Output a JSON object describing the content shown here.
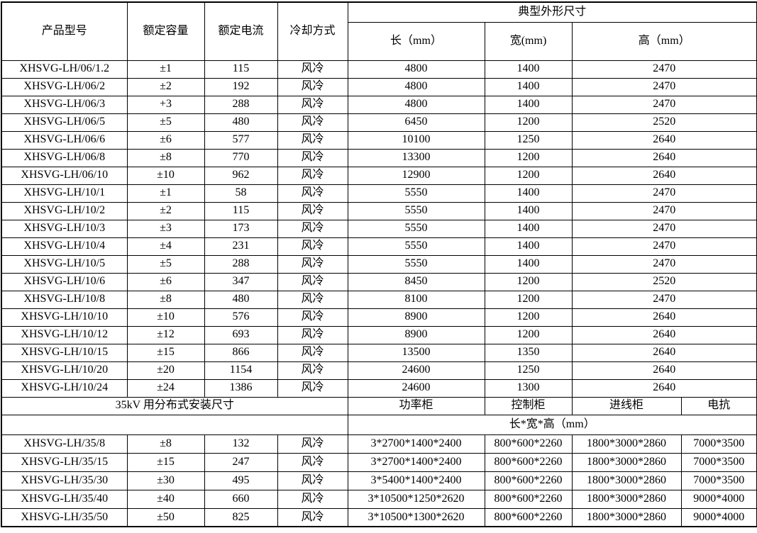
{
  "table": {
    "header": {
      "product": "产品型号",
      "capacity": "额定容量",
      "current": "额定电流",
      "cooling": "冷却方式",
      "dimensions_group": "典型外形尺寸",
      "length": "长（mm）",
      "width": "宽(mm)",
      "height": "高（mm）"
    },
    "rows_main": [
      [
        "XHSVG-LH/06/1.2",
        "±1",
        "115",
        "风冷",
        "4800",
        "1400",
        "2470"
      ],
      [
        "XHSVG-LH/06/2",
        "±2",
        "192",
        "风冷",
        "4800",
        "1400",
        "2470"
      ],
      [
        "XHSVG-LH/06/3",
        "+3",
        "288",
        "风冷",
        "4800",
        "1400",
        "2470"
      ],
      [
        "XHSVG-LH/06/5",
        "±5",
        "480",
        "风冷",
        "6450",
        "1200",
        "2520"
      ],
      [
        "XHSVG-LH/06/6",
        "±6",
        "577",
        "风冷",
        "10100",
        "1250",
        "2640"
      ],
      [
        "XHSVG-LH/06/8",
        "±8",
        "770",
        "风冷",
        "13300",
        "1200",
        "2640"
      ],
      [
        "XHSVG-LH/06/10",
        "±10",
        "962",
        "风冷",
        "12900",
        "1200",
        "2640"
      ],
      [
        "XHSVG-LH/10/1",
        "±1",
        "58",
        "风冷",
        "5550",
        "1400",
        "2470"
      ],
      [
        "XHSVG-LH/10/2",
        "±2",
        "115",
        "风冷",
        "5550",
        "1400",
        "2470"
      ],
      [
        "XHSVG-LH/10/3",
        "±3",
        "173",
        "风冷",
        "5550",
        "1400",
        "2470"
      ],
      [
        "XHSVG-LH/10/4",
        "±4",
        "231",
        "风冷",
        "5550",
        "1400",
        "2470"
      ],
      [
        "XHSVG-LH/10/5",
        "±5",
        "288",
        "风冷",
        "5550",
        "1400",
        "2470"
      ],
      [
        "XHSVG-LH/10/6",
        "±6",
        "347",
        "风冷",
        "8450",
        "1200",
        "2520"
      ],
      [
        "XHSVG-LH/10/8",
        "±8",
        "480",
        "风冷",
        "8100",
        "1200",
        "2470"
      ],
      [
        "XHSVG-LH/10/10",
        "±10",
        "576",
        "风冷",
        "8900",
        "1200",
        "2640"
      ],
      [
        "XHSVG-LH/10/12",
        "±12",
        "693",
        "风冷",
        "8900",
        "1200",
        "2640"
      ],
      [
        "XHSVG-LH/10/15",
        "±15",
        "866",
        "风冷",
        "13500",
        "1350",
        "2640"
      ],
      [
        "XHSVG-LH/10/20",
        "±20",
        "1154",
        "风冷",
        "24600",
        "1250",
        "2640"
      ],
      [
        "XHSVG-LH/10/24",
        "±24",
        "1386",
        "风冷",
        "24600",
        "1300",
        "2640"
      ]
    ],
    "section_35kv": {
      "title": "35kV 用分布式安装尺寸",
      "power_cabinet": "功率柜",
      "control_cabinet": "控制柜",
      "incoming_cabinet": "进线柜",
      "reactor": "电抗",
      "dims_label": "长*宽*高（mm）"
    },
    "rows_35kv": [
      [
        "XHSVG-LH/35/8",
        "±8",
        "132",
        "风冷",
        "3*2700*1400*2400",
        "800*600*2260",
        "1800*3000*2860",
        "7000*3500"
      ],
      [
        "XHSVG-LH/35/15",
        "±15",
        "247",
        "风冷",
        "3*2700*1400*2400",
        "800*600*2260",
        "1800*3000*2860",
        "7000*3500"
      ],
      [
        "XHSVG-LH/35/30",
        "±30",
        "495",
        "风冷",
        "3*5400*1400*2400",
        "800*600*2260",
        "1800*3000*2860",
        "7000*3500"
      ],
      [
        "XHSVG-LH/35/40",
        "±40",
        "660",
        "风冷",
        "3*10500*1250*2620",
        "800*600*2260",
        "1800*3000*2860",
        "9000*4000"
      ],
      [
        "XHSVG-LH/35/50",
        "±50",
        "825",
        "风冷",
        "3*10500*1300*2620",
        "800*600*2260",
        "1800*3000*2860",
        "9000*4000"
      ]
    ]
  }
}
